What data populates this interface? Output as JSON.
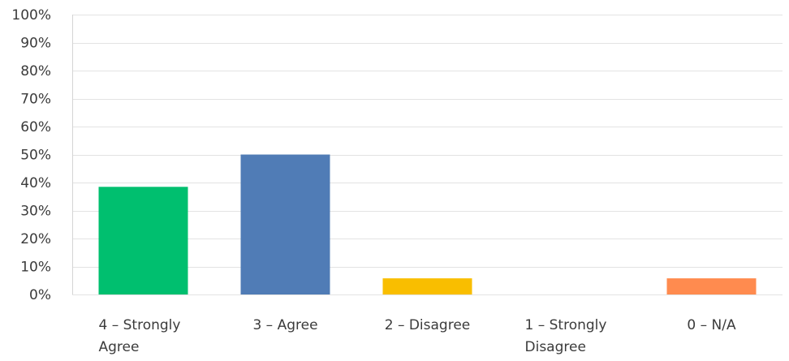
{
  "chart_data": {
    "type": "bar",
    "categories": [
      [
        "4 – Strongly",
        "Agree"
      ],
      [
        "3 – Agree"
      ],
      [
        "2 – Disagree"
      ],
      [
        "1 – Strongly",
        "Disagree"
      ],
      [
        "0 – N/A"
      ]
    ],
    "values": [
      38.46,
      50.0,
      5.77,
      0.0,
      5.77
    ],
    "colors": [
      "#00bf6f",
      "#507cb6",
      "#f9be00",
      "#6bc8cd",
      "#ff8b4f"
    ],
    "title": "",
    "xlabel": "",
    "ylabel": "",
    "ylim": [
      0,
      100
    ],
    "ytick_step": 10,
    "ytick_suffix": "%",
    "grid": true,
    "legend": "none"
  }
}
